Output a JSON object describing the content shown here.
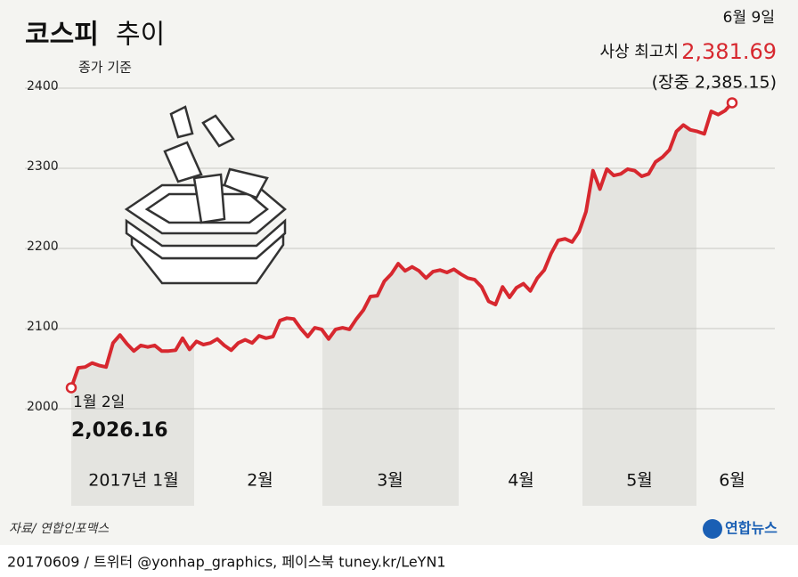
{
  "chart_data": {
    "type": "line",
    "title_bold": "코스피",
    "title_light": "추이",
    "subtitle": "종가 기준",
    "months": [
      "2017년 1월",
      "2월",
      "3월",
      "4월",
      "5월",
      "6월"
    ],
    "series": [
      {
        "name": "코스피",
        "color": "#d7282f",
        "values": [
          2026.16,
          2051,
          2052,
          2057,
          2054,
          2052,
          2082,
          2092,
          2081,
          2072,
          2079,
          2077,
          2079,
          2072,
          2072,
          2073,
          2088,
          2074,
          2084,
          2080,
          2082,
          2087,
          2079,
          2073,
          2082,
          2086,
          2082,
          2091,
          2088,
          2090,
          2110,
          2113,
          2112,
          2100,
          2090,
          2101,
          2099,
          2087,
          2099,
          2101,
          2099,
          2112,
          2123,
          2140,
          2141,
          2159,
          2168,
          2181,
          2172,
          2177,
          2172,
          2163,
          2171,
          2173,
          2170,
          2174,
          2168,
          2163,
          2161,
          2152,
          2134,
          2130,
          2152,
          2139,
          2151,
          2156,
          2147,
          2163,
          2173,
          2194,
          2210,
          2212,
          2208,
          2221,
          2246,
          2297,
          2274,
          2299,
          2291,
          2293,
          2299,
          2297,
          2290,
          2293,
          2308,
          2314,
          2323,
          2346,
          2354,
          2348,
          2346,
          2343,
          2371,
          2367,
          2372,
          2381.69
        ]
      }
    ],
    "start_label": "1월 2일",
    "start_value_label": "2,026.16",
    "end_label": "6월 9일",
    "end_caption": "사상 최고치",
    "end_value_label": "2,381.69",
    "intraday": "(장중 2,385.15)",
    "ylim": [
      2000,
      2400
    ],
    "yticks": [
      2000,
      2100,
      2200,
      2300,
      2400
    ],
    "grid": true,
    "source": "자료/ 연합인포맥스",
    "logo": "연합뉴스",
    "footer": "20170609 / 트위터 @yonhap_graphics, 페이스북 tuney.kr/LeYN1"
  }
}
